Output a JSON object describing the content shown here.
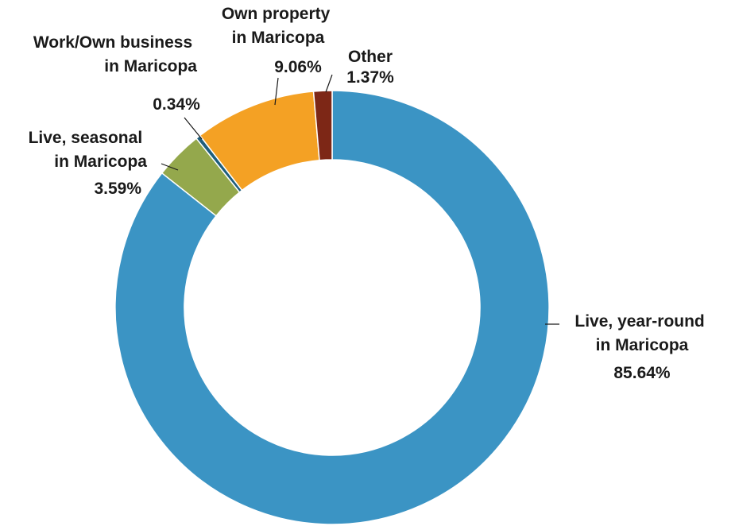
{
  "chart_data": {
    "type": "pie",
    "variant": "donut",
    "title": "",
    "slices": [
      {
        "label": [
          "Live, year-round",
          "in Maricopa"
        ],
        "value": 85.64,
        "display": "85.64%",
        "color": "#3b94c4"
      },
      {
        "label": [
          "Live, seasonal",
          "in Maricopa"
        ],
        "value": 3.59,
        "display": "3.59%",
        "color": "#94a84c"
      },
      {
        "label": [
          "Work/Own business",
          "in Maricopa"
        ],
        "value": 0.34,
        "display": "0.34%",
        "color": "#1f5e7c"
      },
      {
        "label": [
          "Own property",
          "in Maricopa"
        ],
        "value": 9.06,
        "display": "9.06%",
        "color": "#f4a124"
      },
      {
        "label": [
          "Other"
        ],
        "value": 1.37,
        "display": "1.37%",
        "color": "#7d2716"
      }
    ]
  }
}
